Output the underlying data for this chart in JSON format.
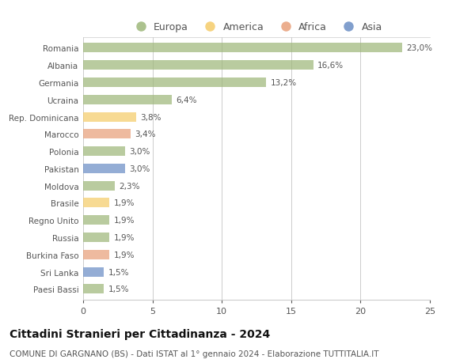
{
  "countries": [
    "Romania",
    "Albania",
    "Germania",
    "Ucraina",
    "Rep. Dominicana",
    "Marocco",
    "Polonia",
    "Pakistan",
    "Moldova",
    "Brasile",
    "Regno Unito",
    "Russia",
    "Burkina Faso",
    "Sri Lanka",
    "Paesi Bassi"
  ],
  "values": [
    23.0,
    16.6,
    13.2,
    6.4,
    3.8,
    3.4,
    3.0,
    3.0,
    2.3,
    1.9,
    1.9,
    1.9,
    1.9,
    1.5,
    1.5
  ],
  "labels": [
    "23,0%",
    "16,6%",
    "13,2%",
    "6,4%",
    "3,8%",
    "3,4%",
    "3,0%",
    "3,0%",
    "2,3%",
    "1,9%",
    "1,9%",
    "1,9%",
    "1,9%",
    "1,5%",
    "1,5%"
  ],
  "continents": [
    "Europa",
    "Europa",
    "Europa",
    "Europa",
    "America",
    "Africa",
    "Europa",
    "Asia",
    "Europa",
    "America",
    "Europa",
    "Europa",
    "Africa",
    "Asia",
    "Europa"
  ],
  "continent_colors": {
    "Europa": "#9EB87A",
    "America": "#F5CC6A",
    "Africa": "#E8A07A",
    "Asia": "#6B8EC5"
  },
  "legend_order": [
    "Europa",
    "America",
    "Africa",
    "Asia"
  ],
  "title": "Cittadini Stranieri per Cittadinanza - 2024",
  "subtitle": "COMUNE DI GARGNANO (BS) - Dati ISTAT al 1° gennaio 2024 - Elaborazione TUTTITALIA.IT",
  "xlim": [
    0,
    25
  ],
  "xticks": [
    0,
    5,
    10,
    15,
    20,
    25
  ],
  "bg_color": "#ffffff",
  "grid_color": "#cccccc",
  "bar_height": 0.55,
  "bar_alpha": 0.72,
  "label_fontsize": 7.5,
  "ytick_fontsize": 7.5,
  "xtick_fontsize": 8,
  "legend_fontsize": 9,
  "title_fontsize": 10,
  "subtitle_fontsize": 7.5
}
